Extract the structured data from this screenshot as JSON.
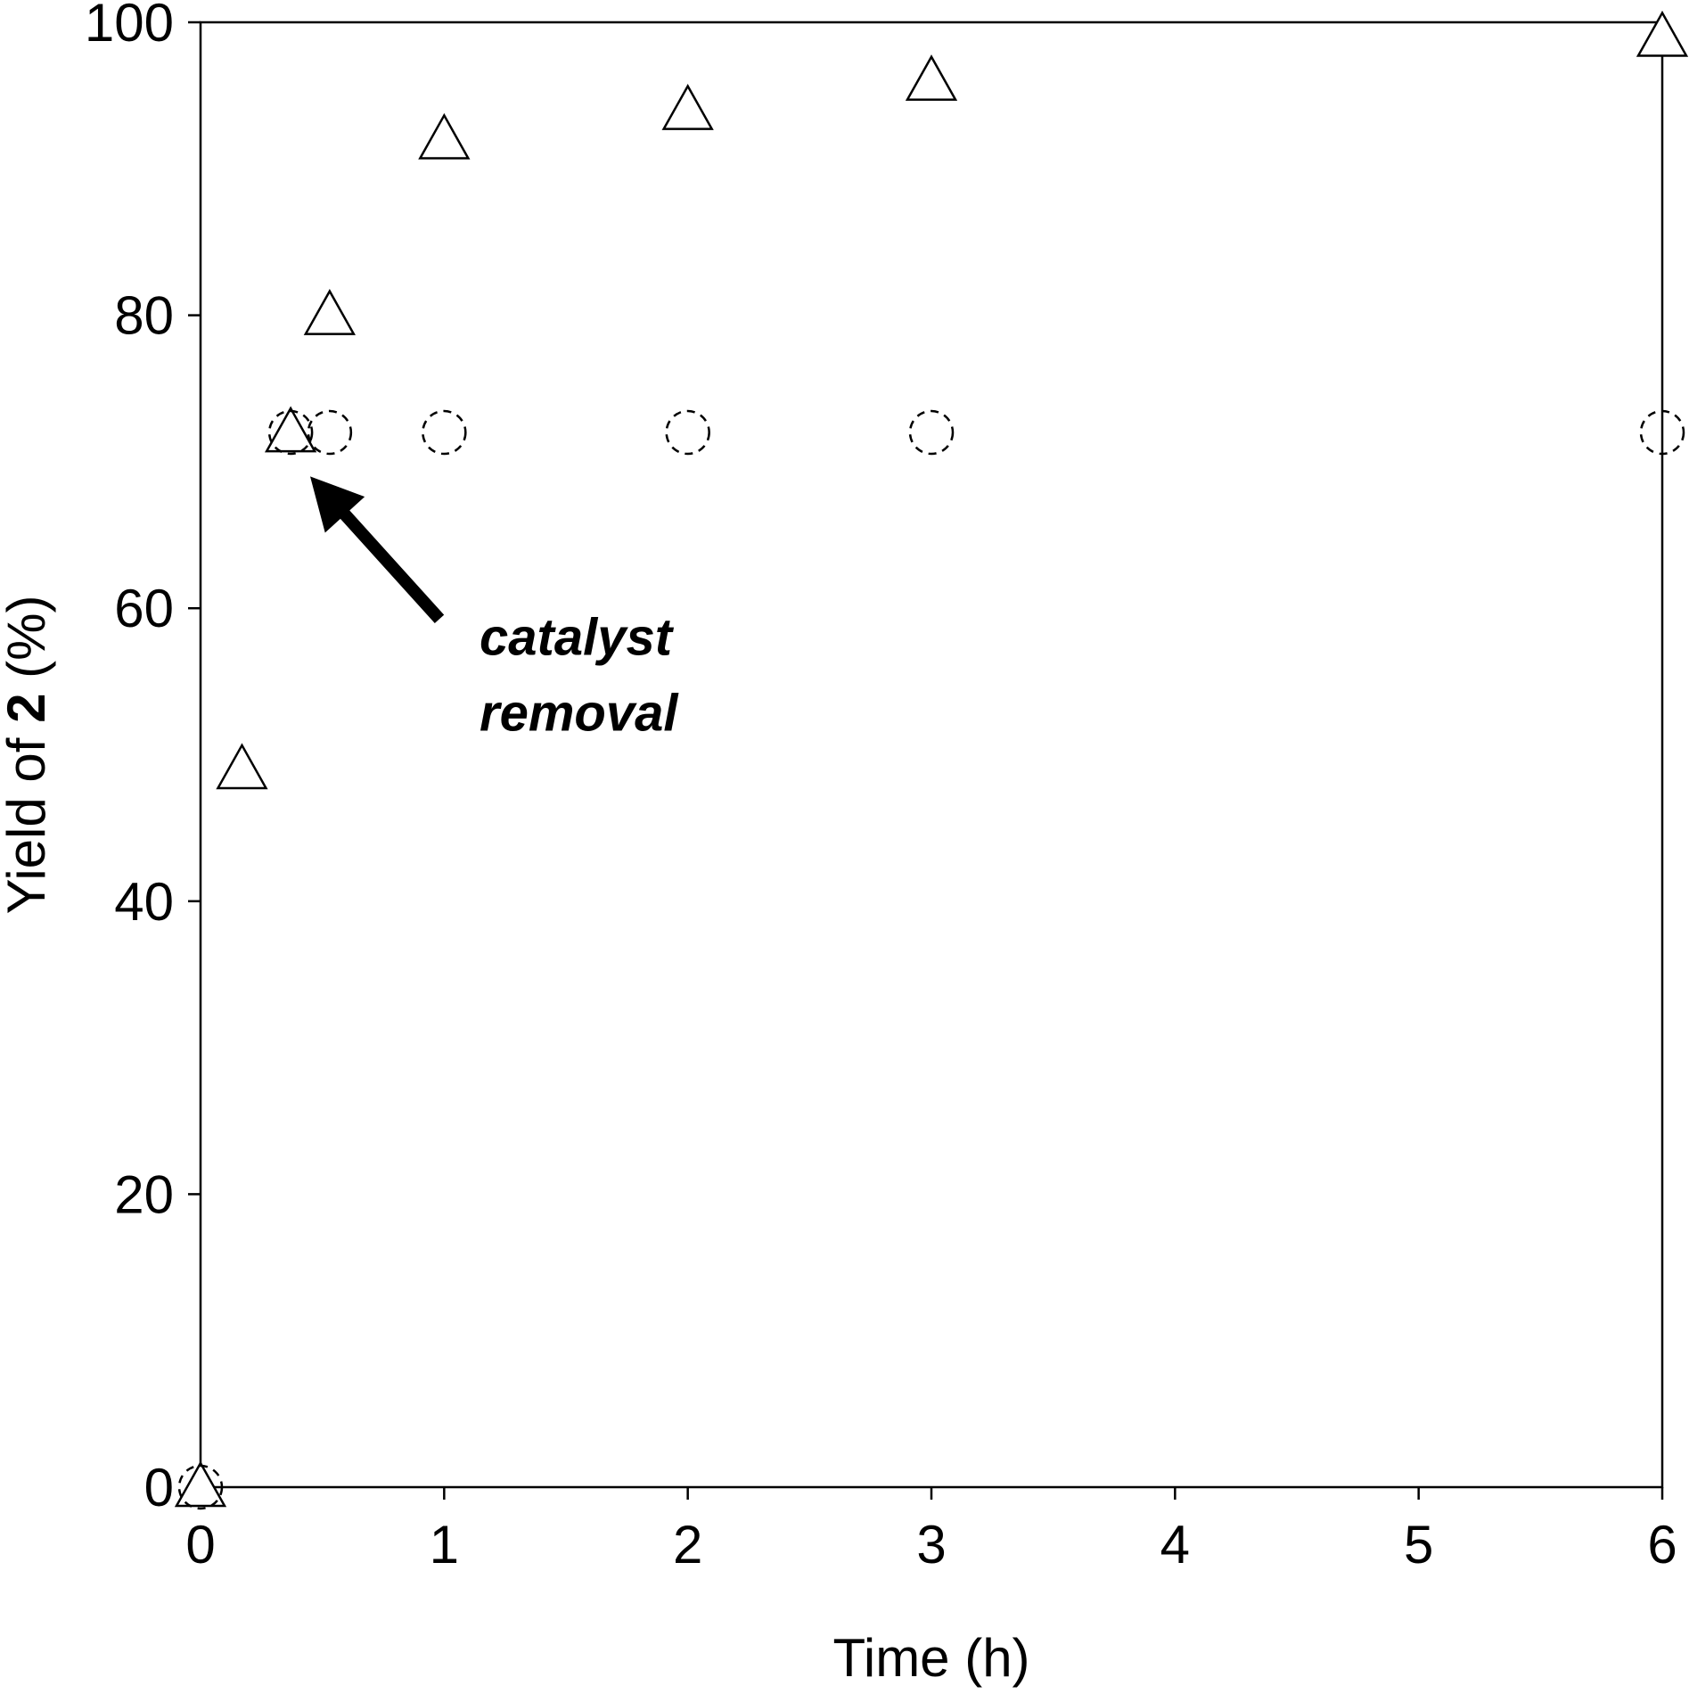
{
  "chart_data": {
    "type": "scatter",
    "xlabel": "Time (h)",
    "ylabel": {
      "prefix": "Yield of ",
      "bold": "2",
      "suffix": " (%)"
    },
    "xlim": [
      0,
      6
    ],
    "ylim": [
      0,
      100
    ],
    "xticks": [
      0,
      1,
      2,
      3,
      4,
      5,
      6
    ],
    "yticks": [
      0,
      20,
      40,
      60,
      80,
      100
    ],
    "grid": false,
    "legend": "none",
    "series": [
      {
        "marker": "triangle",
        "x": [
          0,
          0.17,
          0.37,
          0.53,
          1,
          2,
          3,
          6
        ],
        "y": [
          0,
          49,
          72,
          80,
          92,
          94,
          96,
          99
        ]
      },
      {
        "marker": "circle-dashed",
        "x": [
          0,
          0.37,
          0.53,
          1,
          2,
          3,
          6
        ],
        "y": [
          0,
          72,
          72,
          72,
          72,
          72,
          72
        ]
      }
    ],
    "annotations": [
      {
        "text_lines": [
          "catalyst",
          "removal"
        ],
        "arrow_to": {
          "x": 0.45,
          "y": 69
        }
      }
    ]
  }
}
